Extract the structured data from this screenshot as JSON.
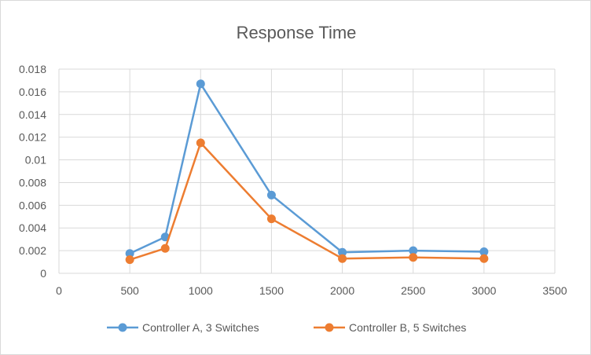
{
  "chart_data": {
    "type": "scatter",
    "title": "Response Time",
    "xlabel": "",
    "ylabel": "",
    "xlim": [
      0,
      3500
    ],
    "ylim": [
      0,
      0.018
    ],
    "xticks": [
      0,
      500,
      1000,
      1500,
      2000,
      2500,
      3000,
      3500
    ],
    "xtick_labels": [
      "0",
      "500",
      "1000",
      "1500",
      "2000",
      "2500",
      "3000",
      "3500"
    ],
    "yticks": [
      0,
      0.002,
      0.004,
      0.006,
      0.008,
      0.01,
      0.012,
      0.014,
      0.016,
      0.018
    ],
    "ytick_labels": [
      "0",
      "0.002",
      "0.004",
      "0.006",
      "0.008",
      "0.01",
      "0.012",
      "0.014",
      "0.016",
      "0.018"
    ],
    "grid": "vertical and horizontal",
    "legend_position": "bottom",
    "series": [
      {
        "name": "Controller A, 3 Switches",
        "color": "#5b9bd5",
        "x": [
          500,
          750,
          1000,
          1500,
          2000,
          2500,
          3000
        ],
        "y": [
          0.00175,
          0.0032,
          0.0167,
          0.0069,
          0.00185,
          0.002,
          0.0019
        ]
      },
      {
        "name": "Controller B, 5 Switches",
        "color": "#ed7d31",
        "x": [
          500,
          750,
          1000,
          1500,
          2000,
          2500,
          3000
        ],
        "y": [
          0.0012,
          0.0022,
          0.0115,
          0.0048,
          0.0013,
          0.0014,
          0.0013
        ]
      }
    ]
  }
}
